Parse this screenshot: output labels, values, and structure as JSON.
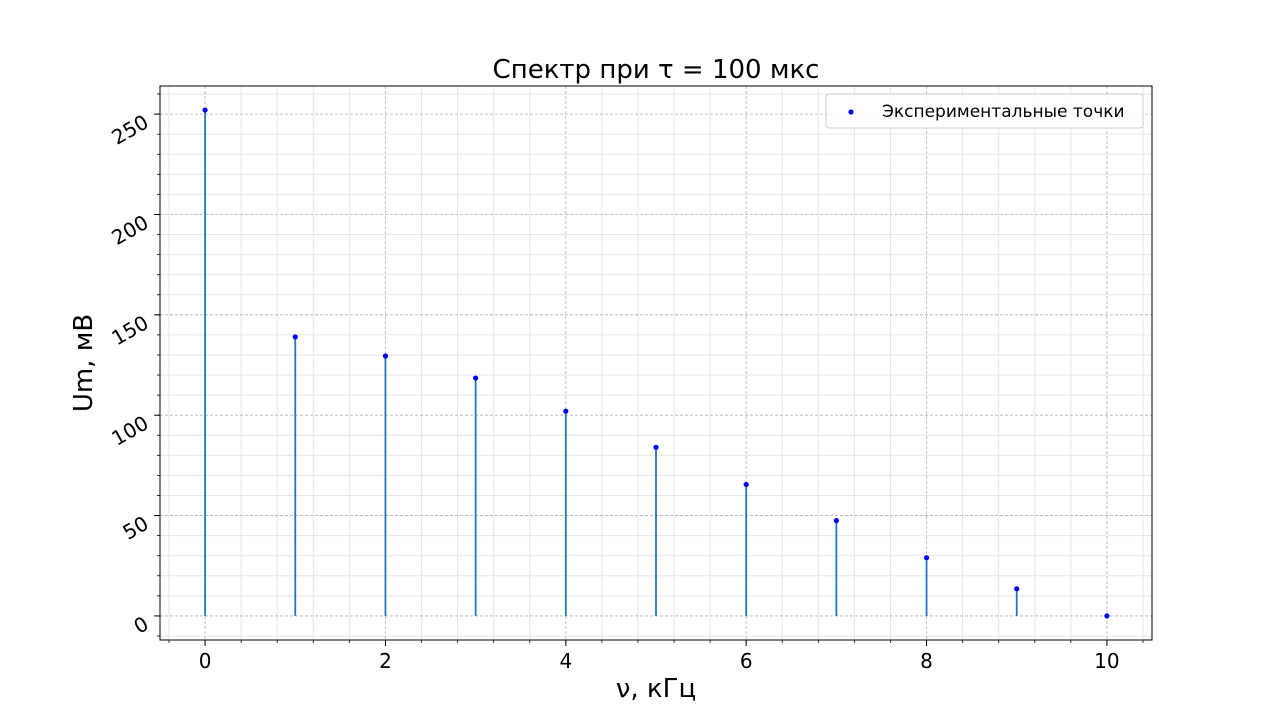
{
  "chart_data": {
    "type": "stem",
    "title": "Спектр при τ = 100 мкс",
    "xlabel": "ν, кГц",
    "ylabel": "Um, мВ",
    "xlim": [
      -0.5,
      10.5
    ],
    "ylim": [
      -12,
      264
    ],
    "xticks": [
      0,
      2,
      4,
      6,
      8,
      10
    ],
    "yticks": [
      0,
      50,
      100,
      150,
      200,
      250
    ],
    "grid": true,
    "minor_grid": true,
    "legend_position": "top-right",
    "stem_color": "#1f77b4",
    "marker_color": "#0000ff",
    "series": [
      {
        "name": "Экспериментальные точки",
        "x": [
          0,
          1,
          2,
          3,
          4,
          5,
          6,
          7,
          8,
          9,
          10
        ],
        "y": [
          252,
          139,
          129.5,
          118.5,
          102,
          84,
          65.5,
          47.5,
          29,
          13.5,
          0
        ]
      }
    ]
  }
}
